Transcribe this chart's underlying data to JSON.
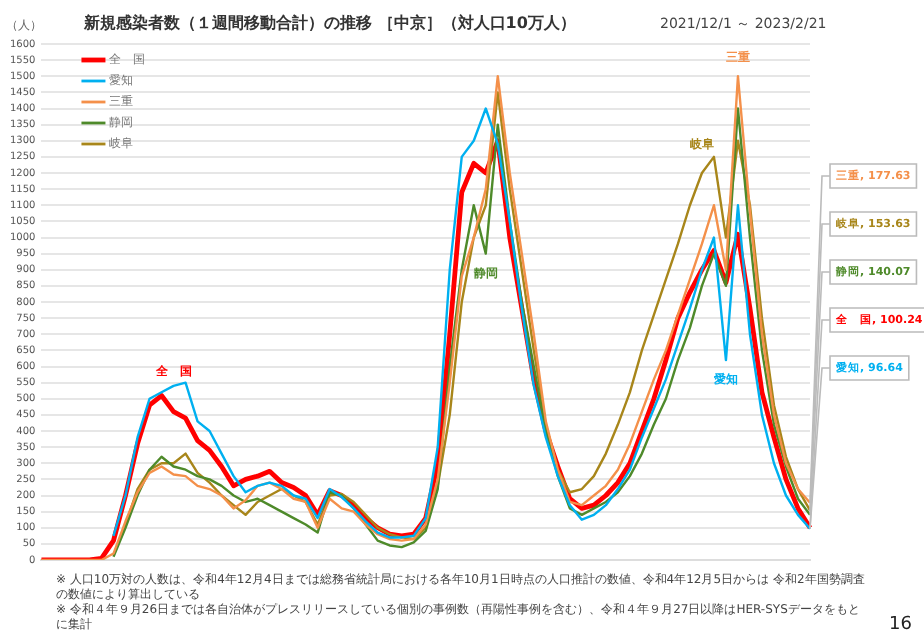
{
  "chart_data": {
    "type": "line",
    "title": "新規感染者数（１週間移動合計）の推移 ［中京］（対人口10万人）",
    "subtitle": "2021/12/1 ～ 2023/2/21",
    "ylabel": "（人）",
    "categories": [
      null,
      null,
      null,
      null,
      null,
      null,
      null,
      null,
      null,
      null,
      null,
      null,
      null,
      null,
      null,
      null,
      null,
      null,
      null,
      null,
      null,
      null,
      null,
      null,
      null,
      null,
      null,
      null,
      null,
      null,
      null,
      null,
      null,
      null,
      null,
      null,
      null,
      null,
      null,
      null,
      null,
      null,
      null,
      null,
      null,
      null,
      null,
      null,
      null,
      null,
      null,
      null,
      null,
      null,
      null,
      null,
      null,
      null,
      null,
      null,
      null,
      null,
      null,
      null,
      null
    ],
    "series": [
      {
        "name": "全　国",
        "color": "#ff0000",
        "values": [
          0,
          0,
          0,
          0,
          0,
          5,
          60,
          200,
          360,
          480,
          510,
          460,
          440,
          370,
          340,
          290,
          230,
          250,
          260,
          275,
          240,
          225,
          200,
          140,
          215,
          200,
          170,
          130,
          100,
          80,
          75,
          80,
          130,
          300,
          700,
          1140,
          1230,
          1200,
          1300,
          1000,
          780,
          560,
          400,
          290,
          190,
          160,
          170,
          200,
          240,
          300,
          400,
          500,
          620,
          750,
          830,
          900,
          960,
          860,
          1010,
          780,
          520,
          380,
          250,
          160,
          100.24
        ],
        "value_labels": [
          null,
          null,
          null,
          null,
          null,
          null,
          null,
          null,
          null,
          null,
          null,
          null,
          null,
          null,
          null,
          null,
          null,
          null,
          null,
          null,
          null,
          null,
          null,
          null,
          null,
          null,
          null,
          null,
          null,
          null,
          null,
          null,
          null,
          null,
          null,
          null,
          null,
          null,
          null,
          null,
          null,
          null,
          null,
          null,
          null,
          null,
          null,
          null,
          null,
          null,
          null,
          null,
          null,
          null,
          null,
          null,
          null,
          null,
          null,
          null,
          null,
          null,
          null,
          null,
          "全　国, 100.24"
        ]
      },
      {
        "name": "愛知",
        "color": "#00b0f0",
        "values": [
          null,
          null,
          null,
          null,
          null,
          null,
          75,
          200,
          380,
          500,
          520,
          540,
          550,
          430,
          400,
          330,
          260,
          210,
          230,
          240,
          230,
          200,
          190,
          130,
          220,
          195,
          160,
          120,
          85,
          70,
          70,
          75,
          130,
          350,
          900,
          1250,
          1300,
          1400,
          1290,
          1050,
          780,
          540,
          380,
          260,
          170,
          125,
          140,
          170,
          220,
          280,
          380,
          470,
          560,
          670,
          780,
          900,
          1000,
          620,
          1100,
          700,
          450,
          300,
          200,
          140,
          96.64
        ],
        "value_labels": [
          null,
          null,
          null,
          null,
          null,
          null,
          null,
          null,
          null,
          null,
          null,
          null,
          null,
          null,
          null,
          null,
          null,
          null,
          null,
          null,
          null,
          null,
          null,
          null,
          null,
          null,
          null,
          null,
          null,
          null,
          null,
          null,
          null,
          null,
          null,
          null,
          null,
          null,
          null,
          null,
          null,
          null,
          null,
          null,
          null,
          null,
          null,
          null,
          null,
          null,
          null,
          null,
          null,
          null,
          null,
          null,
          null,
          null,
          null,
          null,
          null,
          null,
          null,
          null,
          "愛知, 96.64"
        ]
      },
      {
        "name": "三重",
        "color": "#f4904a",
        "values": [
          0,
          0,
          0,
          0,
          0,
          0,
          20,
          120,
          210,
          270,
          290,
          265,
          260,
          230,
          220,
          200,
          160,
          185,
          230,
          240,
          220,
          190,
          180,
          100,
          190,
          160,
          150,
          110,
          80,
          65,
          60,
          65,
          110,
          250,
          550,
          880,
          1000,
          1150,
          1500,
          1200,
          950,
          700,
          430,
          280,
          180,
          170,
          200,
          230,
          280,
          360,
          460,
          560,
          650,
          760,
          870,
          980,
          1100,
          900,
          1500,
          1080,
          700,
          450,
          300,
          220,
          177.63
        ],
        "value_labels": [
          null,
          null,
          null,
          null,
          null,
          null,
          null,
          null,
          null,
          null,
          null,
          null,
          null,
          null,
          null,
          null,
          null,
          null,
          null,
          null,
          null,
          null,
          null,
          null,
          null,
          null,
          null,
          null,
          null,
          null,
          null,
          null,
          null,
          null,
          null,
          null,
          null,
          null,
          null,
          null,
          null,
          null,
          null,
          null,
          null,
          null,
          null,
          null,
          null,
          null,
          null,
          null,
          null,
          null,
          null,
          null,
          null,
          null,
          null,
          null,
          null,
          null,
          null,
          null,
          "三重, 177.63"
        ]
      },
      {
        "name": "静岡",
        "color": "#4e8a2a",
        "values": [
          null,
          null,
          null,
          null,
          null,
          null,
          10,
          100,
          200,
          280,
          320,
          290,
          280,
          260,
          250,
          230,
          200,
          180,
          190,
          170,
          150,
          130,
          110,
          85,
          210,
          200,
          160,
          110,
          60,
          45,
          40,
          55,
          90,
          220,
          600,
          900,
          1100,
          950,
          1350,
          1050,
          800,
          600,
          400,
          260,
          160,
          140,
          160,
          180,
          210,
          260,
          330,
          420,
          500,
          620,
          720,
          850,
          950,
          850,
          1400,
          1000,
          650,
          420,
          290,
          190,
          140.07
        ],
        "value_labels": [
          null,
          null,
          null,
          null,
          null,
          null,
          null,
          null,
          null,
          null,
          null,
          null,
          null,
          null,
          null,
          null,
          null,
          null,
          null,
          null,
          null,
          null,
          null,
          null,
          null,
          null,
          null,
          null,
          null,
          null,
          null,
          null,
          null,
          null,
          null,
          null,
          null,
          null,
          null,
          null,
          null,
          null,
          null,
          null,
          null,
          null,
          null,
          null,
          null,
          null,
          null,
          null,
          null,
          null,
          null,
          null,
          null,
          null,
          null,
          null,
          null,
          null,
          null,
          null,
          "静岡, 140.07"
        ]
      },
      {
        "name": "岐阜",
        "color": "#a8861a",
        "values": [
          null,
          null,
          null,
          null,
          null,
          null,
          15,
          110,
          220,
          280,
          300,
          300,
          330,
          270,
          240,
          200,
          170,
          140,
          180,
          200,
          220,
          200,
          180,
          110,
          200,
          205,
          180,
          140,
          100,
          80,
          70,
          65,
          100,
          230,
          450,
          800,
          1000,
          1100,
          1450,
          1150,
          900,
          650,
          420,
          280,
          210,
          220,
          260,
          330,
          420,
          520,
          650,
          760,
          870,
          980,
          1100,
          1200,
          1250,
          1000,
          1300,
          1100,
          750,
          480,
          320,
          220,
          153.63
        ],
        "value_labels": [
          null,
          null,
          null,
          null,
          null,
          null,
          null,
          null,
          null,
          null,
          null,
          null,
          null,
          null,
          null,
          null,
          null,
          null,
          null,
          null,
          null,
          null,
          null,
          null,
          null,
          null,
          null,
          null,
          null,
          null,
          null,
          null,
          null,
          null,
          null,
          null,
          null,
          null,
          null,
          null,
          null,
          null,
          null,
          null,
          null,
          null,
          null,
          null,
          null,
          null,
          null,
          null,
          null,
          null,
          null,
          null,
          null,
          null,
          null,
          null,
          null,
          null,
          null,
          null,
          "岐阜, 153.63"
        ]
      }
    ],
    "ylim": [
      0,
      1600
    ],
    "yticks": [
      0,
      50,
      100,
      150,
      200,
      250,
      300,
      350,
      400,
      450,
      500,
      550,
      600,
      650,
      700,
      750,
      800,
      850,
      900,
      950,
      1000,
      1050,
      1100,
      1150,
      1200,
      1250,
      1300,
      1350,
      1400,
      1450,
      1500,
      1550,
      1600
    ],
    "grid": "y",
    "legend": "top left",
    "tick_labels": "y",
    "marker": "none",
    "line_style": "solid",
    "annotations": [
      "※ 人口10万対の人数は、令和4年12月4日までは総務省統計局における各年10月1日時点の人口推計の数値、令和4年12月5日からは 令和2年国勢調査の数値により算出している",
      "※ 令和４年９月26日までは各自治体がプレスリリースしている個別の事例数（再陽性事例を含む）、令和４年９月27日以降はHER-SYSデータをもとに集計",
      "16"
    ]
  }
}
